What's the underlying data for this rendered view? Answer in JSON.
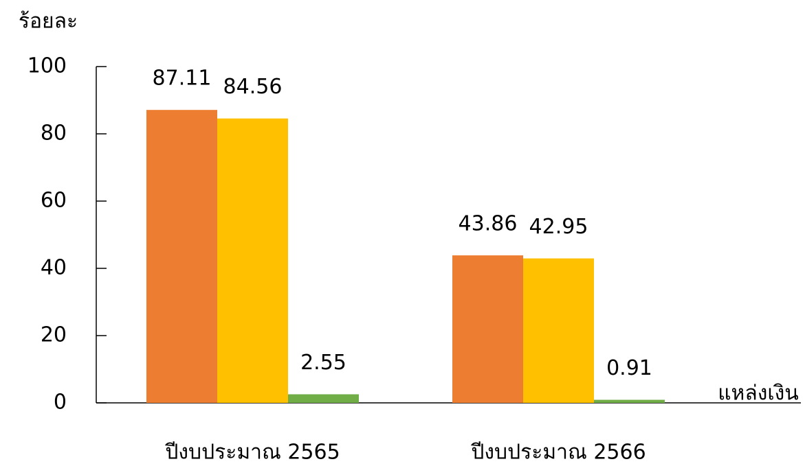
{
  "chart_data": {
    "type": "bar",
    "y_label": "ร้อยละ",
    "x_label": "แหล่งเงิน",
    "categories": [
      "ปีงบประมาณ 2565",
      "ปีงบประมาณ 2566"
    ],
    "series": [
      {
        "color": "#ED7D31",
        "values": [
          87.11,
          43.86
        ]
      },
      {
        "color": "#FFC000",
        "values": [
          84.56,
          42.95
        ]
      },
      {
        "color": "#70AD47",
        "values": [
          2.55,
          0.91
        ]
      }
    ],
    "ylim": [
      0,
      100
    ],
    "yticks": [
      0,
      20,
      40,
      60,
      80,
      100
    ]
  }
}
